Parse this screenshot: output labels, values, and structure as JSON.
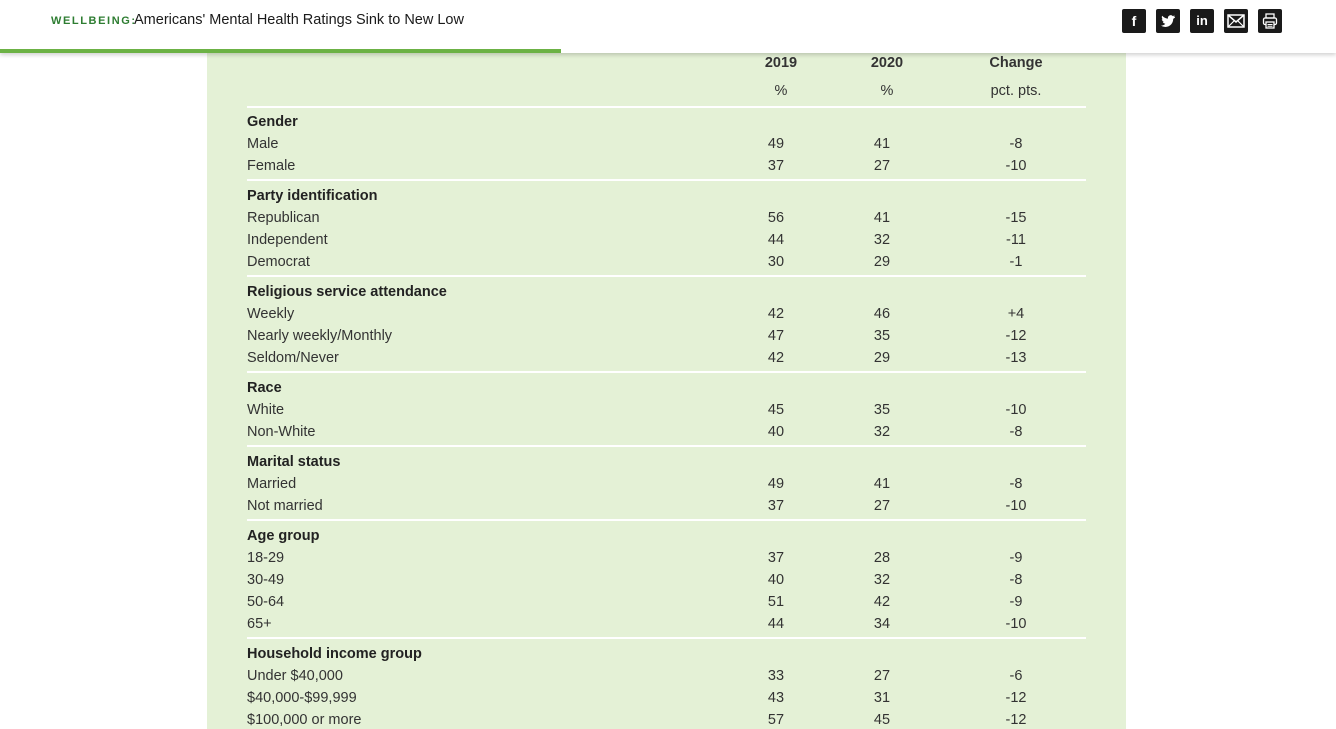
{
  "header": {
    "section": "WELLBEING:",
    "title": "Americans' Mental Health Ratings Sink to New Low",
    "share_icons": [
      "facebook-icon",
      "twitter-icon",
      "linkedin-icon",
      "email-icon",
      "print-icon"
    ],
    "share_glyphs": {
      "facebook": "f",
      "linkedin": "in"
    },
    "progress_fraction": 0.42,
    "accent_color": "#6cb245",
    "section_color": "#2e7d32"
  },
  "table": {
    "background": "#e4f1d6",
    "columns": [
      {
        "head": "2019",
        "unit": "%"
      },
      {
        "head": "2020",
        "unit": "%"
      },
      {
        "head": "Change",
        "unit": "pct. pts."
      }
    ],
    "groups": [
      {
        "name": "Gender",
        "rows": [
          {
            "label": "Male",
            "v2019": "49",
            "v2020": "41",
            "change": "-8"
          },
          {
            "label": "Female",
            "v2019": "37",
            "v2020": "27",
            "change": "-10"
          }
        ]
      },
      {
        "name": "Party identification",
        "rows": [
          {
            "label": "Republican",
            "v2019": "56",
            "v2020": "41",
            "change": "-15"
          },
          {
            "label": "Independent",
            "v2019": "44",
            "v2020": "32",
            "change": "-11"
          },
          {
            "label": "Democrat",
            "v2019": "30",
            "v2020": "29",
            "change": "-1"
          }
        ]
      },
      {
        "name": "Religious service attendance",
        "rows": [
          {
            "label": "Weekly",
            "v2019": "42",
            "v2020": "46",
            "change": "+4"
          },
          {
            "label": "Nearly weekly/Monthly",
            "v2019": "47",
            "v2020": "35",
            "change": "-12"
          },
          {
            "label": "Seldom/Never",
            "v2019": "42",
            "v2020": "29",
            "change": "-13"
          }
        ]
      },
      {
        "name": "Race",
        "rows": [
          {
            "label": "White",
            "v2019": "45",
            "v2020": "35",
            "change": "-10"
          },
          {
            "label": "Non-White",
            "v2019": "40",
            "v2020": "32",
            "change": "-8"
          }
        ]
      },
      {
        "name": "Marital status",
        "rows": [
          {
            "label": "Married",
            "v2019": "49",
            "v2020": "41",
            "change": "-8"
          },
          {
            "label": "Not married",
            "v2019": "37",
            "v2020": "27",
            "change": "-10"
          }
        ]
      },
      {
        "name": "Age group",
        "rows": [
          {
            "label": "18-29",
            "v2019": "37",
            "v2020": "28",
            "change": "-9"
          },
          {
            "label": "30-49",
            "v2019": "40",
            "v2020": "32",
            "change": "-8"
          },
          {
            "label": "50-64",
            "v2019": "51",
            "v2020": "42",
            "change": "-9"
          },
          {
            "label": "65+",
            "v2019": "44",
            "v2020": "34",
            "change": "-10"
          }
        ]
      },
      {
        "name": "Household income group",
        "rows": [
          {
            "label": "Under $40,000",
            "v2019": "33",
            "v2020": "27",
            "change": "-6"
          },
          {
            "label": "$40,000-$99,999",
            "v2019": "43",
            "v2020": "31",
            "change": "-12"
          },
          {
            "label": "$100,000 or more",
            "v2019": "57",
            "v2020": "45",
            "change": "-12"
          }
        ]
      }
    ]
  }
}
